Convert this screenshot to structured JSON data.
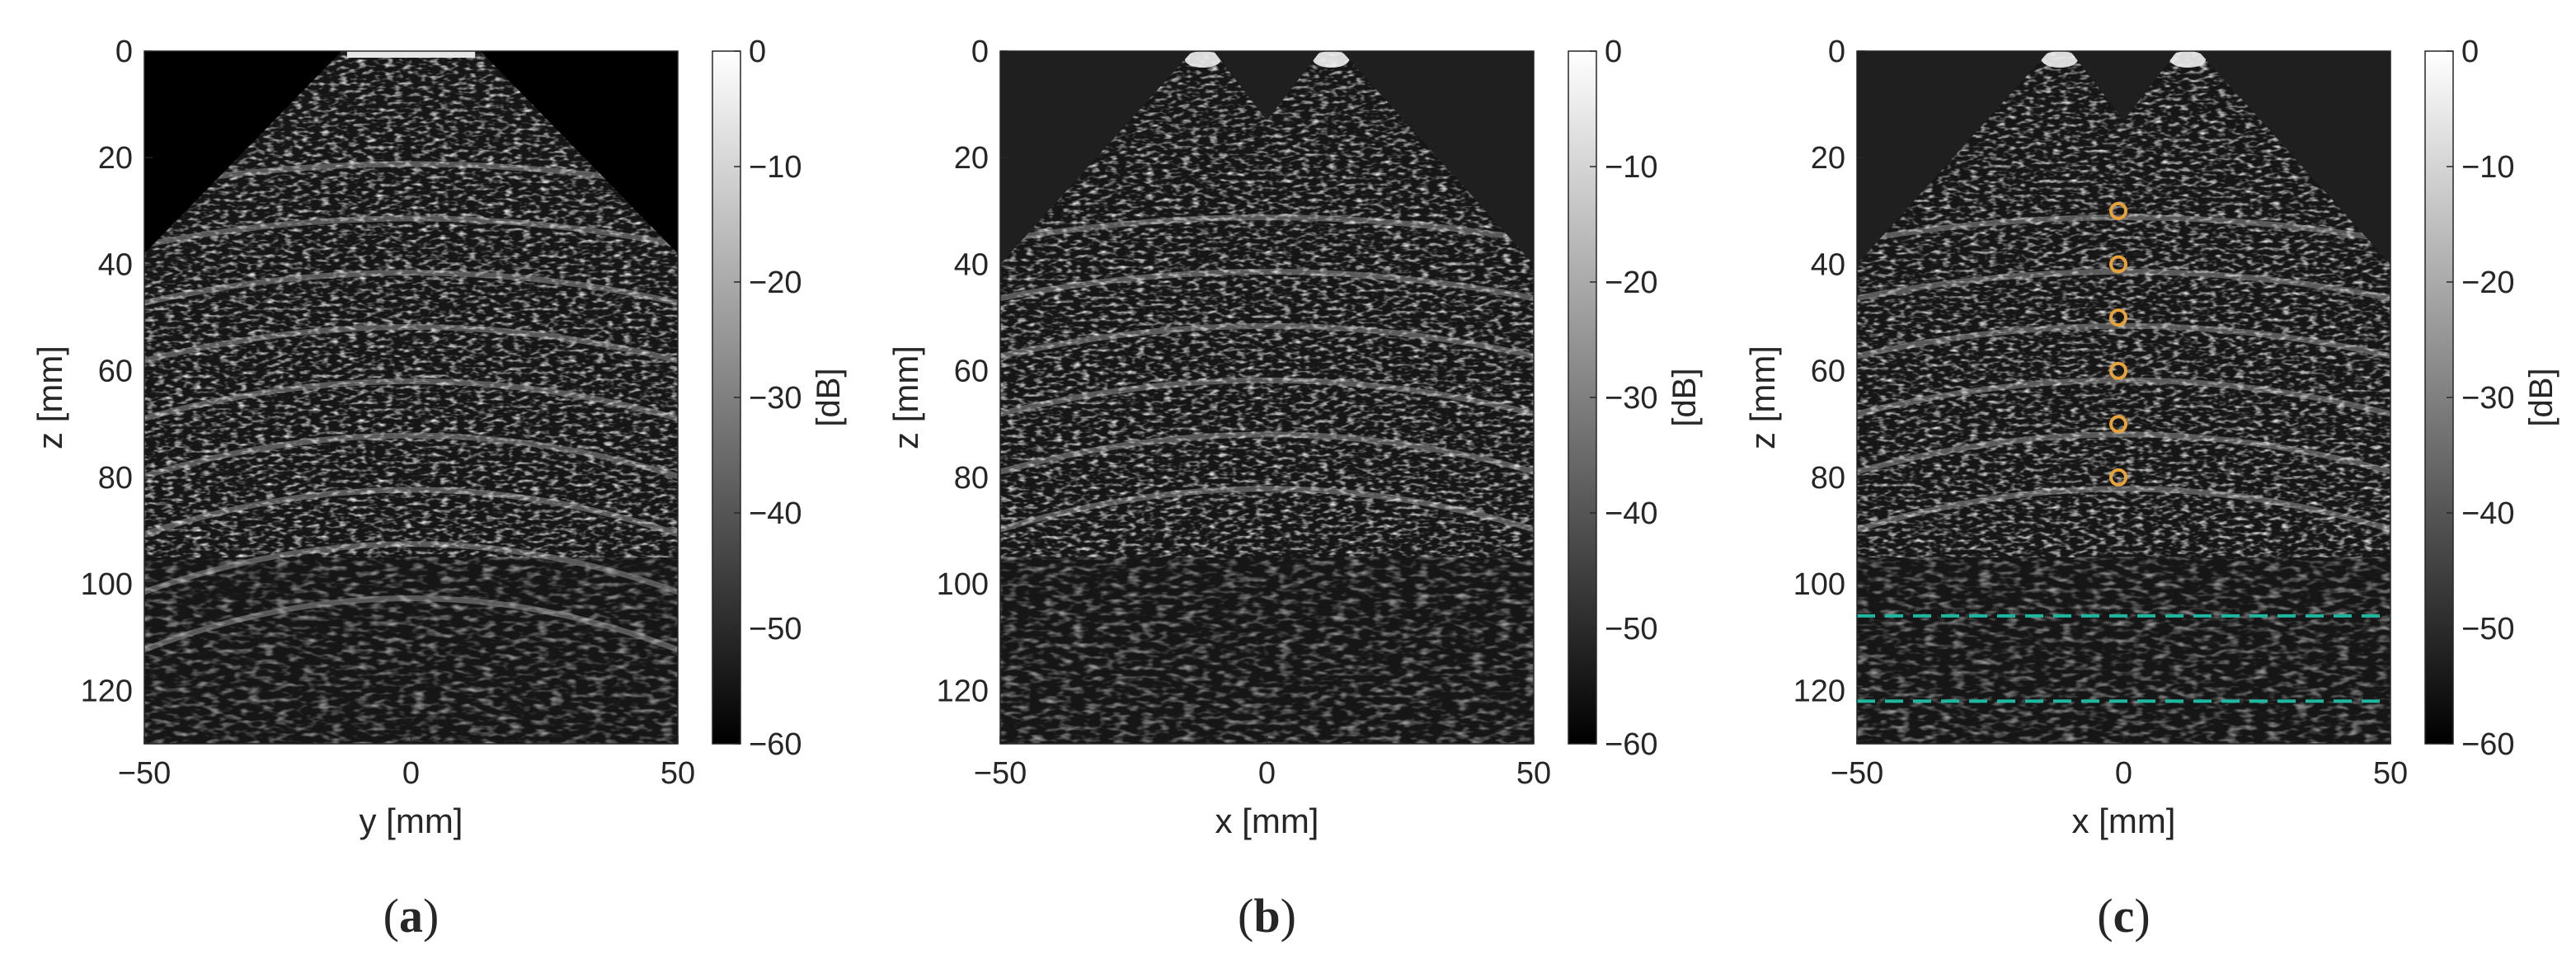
{
  "panels": [
    {
      "id": "a",
      "caption": "(a)",
      "caption_bold": "a",
      "chart_data": {
        "type": "heatmap",
        "description_kind": "ultrasound B-mode image",
        "xlabel": "y [mm]",
        "ylabel": "z [mm]",
        "xlim": [
          -50,
          50
        ],
        "ylim": [
          0,
          130
        ],
        "y_reversed": true,
        "xticks": [
          -50,
          0,
          50
        ],
        "yticks": [
          0,
          20,
          40,
          60,
          80,
          100,
          120
        ],
        "xticklabels": [
          "−50",
          "0",
          "50"
        ],
        "yticklabels": [
          "0",
          "20",
          "40",
          "60",
          "80",
          "100",
          "120"
        ],
        "colorbar": {
          "label": "[dB]",
          "range": [
            -60,
            0
          ],
          "ticks": [
            0,
            -10,
            -20,
            -30,
            -40,
            -50,
            -60
          ],
          "ticklabels": [
            "0",
            "−10",
            "−20",
            "−30",
            "−40",
            "−50",
            "−60"
          ],
          "colormap": "gray"
        },
        "sector": "single",
        "bright_layers_z": [
          20,
          30,
          40,
          50,
          60,
          70,
          80,
          90,
          100
        ]
      }
    },
    {
      "id": "b",
      "caption": "(b)",
      "caption_bold": "b",
      "chart_data": {
        "type": "heatmap",
        "description_kind": "ultrasound B-mode image",
        "xlabel": "x [mm]",
        "ylabel": "z [mm]",
        "xlim": [
          -50,
          50
        ],
        "ylim": [
          0,
          130
        ],
        "y_reversed": true,
        "xticks": [
          -50,
          0,
          50
        ],
        "yticks": [
          0,
          20,
          40,
          60,
          80,
          100,
          120
        ],
        "xticklabels": [
          "−50",
          "0",
          "50"
        ],
        "yticklabels": [
          "0",
          "20",
          "40",
          "60",
          "80",
          "100",
          "120"
        ],
        "colorbar": {
          "label": "[dB]",
          "range": [
            -60,
            0
          ],
          "ticks": [
            0,
            -10,
            -20,
            -30,
            -40,
            -50,
            -60
          ],
          "ticklabels": [
            "0",
            "−10",
            "−20",
            "−30",
            "−40",
            "−50",
            "−60"
          ],
          "colormap": "gray"
        },
        "sector": "double",
        "apex_x": [
          -12,
          12
        ],
        "bright_layers_z": [
          30,
          40,
          50,
          60,
          70,
          80
        ]
      }
    },
    {
      "id": "c",
      "caption": "(c)",
      "caption_bold": "c",
      "chart_data": {
        "type": "heatmap",
        "description_kind": "ultrasound B-mode image",
        "xlabel": "x [mm]",
        "ylabel": "z [mm]",
        "xlim": [
          -50,
          50
        ],
        "ylim": [
          0,
          130
        ],
        "y_reversed": true,
        "xticks": [
          -50,
          0,
          50
        ],
        "yticks": [
          0,
          20,
          40,
          60,
          80,
          100,
          120
        ],
        "xticklabels": [
          "−50",
          "0",
          "50"
        ],
        "yticklabels": [
          "0",
          "20",
          "40",
          "60",
          "80",
          "100",
          "120"
        ],
        "colorbar": {
          "label": "[dB]",
          "range": [
            -60,
            0
          ],
          "ticks": [
            0,
            -10,
            -20,
            -30,
            -40,
            -50,
            -60
          ],
          "ticklabels": [
            "0",
            "−10",
            "−20",
            "−30",
            "−40",
            "−50",
            "−60"
          ],
          "colormap": "gray"
        },
        "sector": "double",
        "apex_x": [
          -12,
          12
        ],
        "bright_layers_z": [
          30,
          40,
          50,
          60,
          70,
          80
        ],
        "markers": {
          "x": [
            -1,
            -1,
            -1,
            -1,
            -1,
            -1
          ],
          "z": [
            30,
            40,
            50,
            60,
            70,
            80
          ],
          "color": "#e8a23a",
          "shape": "circle"
        },
        "dashed_lines_z": [
          106,
          122
        ],
        "dashed_line_color": "#1fb7a0"
      }
    }
  ]
}
